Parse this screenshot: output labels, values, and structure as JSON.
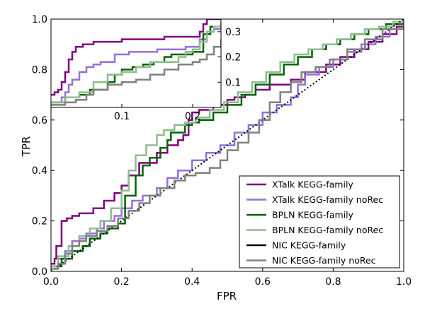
{
  "chart_data": [
    {
      "type": "line",
      "title": "",
      "xlabel": "FPR",
      "ylabel": "TPR",
      "xlim": [
        0,
        1
      ],
      "ylim": [
        0,
        1
      ],
      "xticks": [
        "0.0",
        "0.2",
        "0.4",
        "0.6",
        "0.8",
        "1.0"
      ],
      "yticks": [
        "0.0",
        "0.2",
        "0.4",
        "0.6",
        "0.8",
        "1.0"
      ],
      "grid": false,
      "legend_position": "lower-right",
      "legend_entries": [
        {
          "name": "XTalk KEGG-family",
          "color": "#800080"
        },
        {
          "name": "XTalk KEGG-family noRec",
          "color": "#9370DB"
        },
        {
          "name": "BPLN KEGG-family",
          "color": "#006400"
        },
        {
          "name": "BPLN KEGG-family noRec",
          "color": "#8FBC8F"
        },
        {
          "name": "NIC KEGG-family",
          "color": "#000000"
        },
        {
          "name": "NIC KEGG-family noRec",
          "color": "#808080"
        }
      ],
      "series": [
        {
          "name": "XTalk KEGG-family",
          "color": "#800080",
          "style": "step",
          "x": [
            0,
            0.01,
            0.015,
            0.03,
            0.03,
            0.045,
            0.06,
            0.08,
            0.12,
            0.15,
            0.18,
            0.2,
            0.22,
            0.25,
            0.3,
            0.33,
            0.36,
            0.375,
            0.39,
            0.4,
            0.42,
            0.46,
            0.5,
            0.52,
            0.55,
            0.58,
            0.62,
            0.68,
            0.72,
            0.78,
            0.82,
            0.86,
            0.9,
            0.94,
            0.98,
            1.0
          ],
          "y": [
            0.03,
            0.05,
            0.1,
            0.16,
            0.2,
            0.21,
            0.22,
            0.23,
            0.25,
            0.28,
            0.31,
            0.34,
            0.38,
            0.43,
            0.47,
            0.5,
            0.52,
            0.54,
            0.6,
            0.63,
            0.64,
            0.66,
            0.68,
            0.69,
            0.7,
            0.72,
            0.74,
            0.76,
            0.79,
            0.82,
            0.85,
            0.88,
            0.91,
            0.94,
            0.97,
            1.0
          ]
        },
        {
          "name": "XTalk KEGG-family noRec",
          "color": "#9370DB",
          "style": "step",
          "x": [
            0,
            0.02,
            0.04,
            0.06,
            0.08,
            0.1,
            0.13,
            0.15,
            0.18,
            0.2,
            0.23,
            0.26,
            0.3,
            0.33,
            0.36,
            0.4,
            0.44,
            0.48,
            0.52,
            0.56,
            0.6,
            0.64,
            0.68,
            0.7,
            0.72,
            0.76,
            0.8,
            0.84,
            0.88,
            0.92,
            0.96,
            1.0
          ],
          "y": [
            0.02,
            0.05,
            0.08,
            0.12,
            0.13,
            0.15,
            0.17,
            0.2,
            0.22,
            0.25,
            0.28,
            0.3,
            0.33,
            0.37,
            0.4,
            0.44,
            0.47,
            0.5,
            0.55,
            0.58,
            0.63,
            0.66,
            0.69,
            0.74,
            0.78,
            0.81,
            0.84,
            0.87,
            0.9,
            0.93,
            0.96,
            1.0
          ]
        },
        {
          "name": "BPLN KEGG-family",
          "color": "#006400",
          "style": "step",
          "x": [
            0,
            0.03,
            0.06,
            0.09,
            0.11,
            0.14,
            0.16,
            0.19,
            0.21,
            0.24,
            0.26,
            0.28,
            0.31,
            0.33,
            0.34,
            0.38,
            0.4,
            0.42,
            0.46,
            0.5,
            0.54,
            0.58,
            0.62,
            0.66,
            0.7,
            0.74,
            0.78,
            0.82,
            0.86,
            0.9,
            0.95,
            1.0
          ],
          "y": [
            0.02,
            0.05,
            0.08,
            0.1,
            0.13,
            0.15,
            0.17,
            0.19,
            0.3,
            0.38,
            0.42,
            0.45,
            0.49,
            0.52,
            0.55,
            0.58,
            0.59,
            0.6,
            0.63,
            0.66,
            0.7,
            0.74,
            0.78,
            0.82,
            0.85,
            0.88,
            0.9,
            0.92,
            0.94,
            0.96,
            0.98,
            1.0
          ]
        },
        {
          "name": "BPLN KEGG-family noRec",
          "color": "#8FBC8F",
          "style": "step",
          "x": [
            0,
            0.02,
            0.05,
            0.08,
            0.11,
            0.14,
            0.17,
            0.2,
            0.22,
            0.24,
            0.27,
            0.3,
            0.32,
            0.35,
            0.38,
            0.41,
            0.45,
            0.49,
            0.53,
            0.57,
            0.61,
            0.65,
            0.69,
            0.73,
            0.77,
            0.81,
            0.85,
            0.89,
            0.93,
            0.97,
            1.0
          ],
          "y": [
            0.02,
            0.06,
            0.1,
            0.14,
            0.17,
            0.2,
            0.25,
            0.32,
            0.4,
            0.46,
            0.5,
            0.54,
            0.56,
            0.58,
            0.59,
            0.61,
            0.64,
            0.67,
            0.71,
            0.75,
            0.79,
            0.83,
            0.86,
            0.88,
            0.9,
            0.92,
            0.94,
            0.96,
            0.97,
            0.99,
            1.0
          ]
        },
        {
          "name": "NIC KEGG-family",
          "color": "#000000",
          "style": "dotted",
          "x": [
            0,
            1.0
          ],
          "y": [
            0,
            1.0
          ]
        },
        {
          "name": "NIC KEGG-family noRec",
          "color": "#808080",
          "style": "step",
          "x": [
            0,
            0.02,
            0.04,
            0.06,
            0.08,
            0.1,
            0.13,
            0.16,
            0.19,
            0.22,
            0.25,
            0.28,
            0.31,
            0.35,
            0.38,
            0.41,
            0.45,
            0.48,
            0.5,
            0.53,
            0.56,
            0.59,
            0.62,
            0.65,
            0.68,
            0.71,
            0.75,
            0.79,
            0.84,
            0.89,
            0.94,
            1.0
          ],
          "y": [
            0.01,
            0.03,
            0.07,
            0.1,
            0.12,
            0.14,
            0.16,
            0.18,
            0.21,
            0.24,
            0.27,
            0.3,
            0.33,
            0.36,
            0.38,
            0.39,
            0.41,
            0.44,
            0.48,
            0.51,
            0.55,
            0.6,
            0.67,
            0.71,
            0.75,
            0.79,
            0.81,
            0.84,
            0.88,
            0.92,
            0.96,
            1.0
          ]
        }
      ]
    },
    {
      "type": "line",
      "title": "",
      "xlim": [
        0,
        0.24
      ],
      "ylim": [
        0,
        0.35
      ],
      "xticks": [
        "0.1",
        "0.2"
      ],
      "yticks": [
        "0.1",
        "0.2",
        "0.3"
      ],
      "grid": false,
      "series": [
        {
          "name": "XTalk KEGG-family",
          "color": "#800080",
          "style": "step",
          "x": [
            0,
            0.005,
            0.01,
            0.015,
            0.02,
            0.025,
            0.03,
            0.035,
            0.045,
            0.06,
            0.08,
            0.1,
            0.13,
            0.16,
            0.19,
            0.21,
            0.215,
            0.22,
            0.24
          ],
          "y": [
            0.05,
            0.06,
            0.07,
            0.1,
            0.14,
            0.19,
            0.22,
            0.24,
            0.25,
            0.26,
            0.26,
            0.27,
            0.27,
            0.28,
            0.28,
            0.3,
            0.33,
            0.35,
            0.35
          ]
        },
        {
          "name": "XTalk KEGG-family noRec",
          "color": "#9370DB",
          "style": "step",
          "x": [
            0,
            0.01,
            0.015,
            0.02,
            0.025,
            0.03,
            0.04,
            0.05,
            0.06,
            0.07,
            0.09,
            0.11,
            0.13,
            0.15,
            0.17,
            0.19,
            0.2,
            0.21,
            0.22,
            0.23,
            0.24
          ],
          "y": [
            0.02,
            0.02,
            0.04,
            0.06,
            0.09,
            0.11,
            0.14,
            0.16,
            0.17,
            0.18,
            0.21,
            0.22,
            0.22,
            0.23,
            0.23,
            0.24,
            0.24,
            0.27,
            0.3,
            0.31,
            0.32
          ]
        },
        {
          "name": "BPLN KEGG-family",
          "color": "#006400",
          "style": "step",
          "x": [
            0,
            0.02,
            0.04,
            0.055,
            0.07,
            0.08,
            0.09,
            0.1,
            0.115,
            0.13,
            0.145,
            0.16,
            0.17,
            0.2,
            0.215,
            0.225,
            0.24
          ],
          "y": [
            0.02,
            0.04,
            0.05,
            0.07,
            0.07,
            0.1,
            0.13,
            0.15,
            0.16,
            0.17,
            0.18,
            0.2,
            0.21,
            0.22,
            0.29,
            0.32,
            0.33
          ]
        },
        {
          "name": "BPLN KEGG-family noRec",
          "color": "#8FBC8F",
          "style": "step",
          "x": [
            0,
            0.02,
            0.04,
            0.06,
            0.08,
            0.1,
            0.12,
            0.14,
            0.16,
            0.18,
            0.19,
            0.2,
            0.21,
            0.22,
            0.23,
            0.24
          ],
          "y": [
            0.02,
            0.04,
            0.06,
            0.1,
            0.13,
            0.14,
            0.16,
            0.18,
            0.18,
            0.2,
            0.22,
            0.23,
            0.26,
            0.3,
            0.32,
            0.34
          ]
        },
        {
          "name": "NIC KEGG-family noRec",
          "color": "#808080",
          "style": "step",
          "x": [
            0,
            0.02,
            0.035,
            0.05,
            0.06,
            0.08,
            0.1,
            0.12,
            0.14,
            0.16,
            0.18,
            0.2,
            0.21,
            0.22,
            0.23,
            0.24
          ],
          "y": [
            0.01,
            0.02,
            0.03,
            0.05,
            0.07,
            0.09,
            0.1,
            0.11,
            0.13,
            0.15,
            0.17,
            0.18,
            0.19,
            0.21,
            0.24,
            0.27
          ]
        }
      ]
    }
  ]
}
